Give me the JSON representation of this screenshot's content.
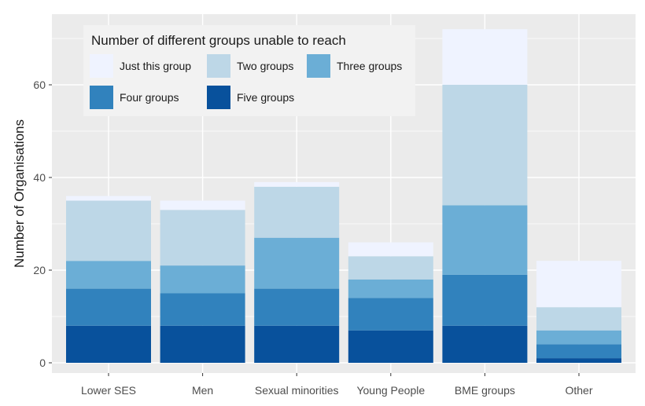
{
  "chart_data": {
    "type": "bar",
    "stacked": true,
    "categories": [
      "Lower SES",
      "Men",
      "Sexual minorities",
      "Young People",
      "BME groups",
      "Other"
    ],
    "series": [
      {
        "name": "Five groups",
        "color": "#08519c",
        "values": [
          8,
          8,
          8,
          7,
          8,
          1
        ]
      },
      {
        "name": "Four groups",
        "color": "#3182bd",
        "values": [
          8,
          7,
          8,
          7,
          11,
          3
        ]
      },
      {
        "name": "Three groups",
        "color": "#6baed6",
        "values": [
          6,
          6,
          11,
          4,
          15,
          3
        ]
      },
      {
        "name": "Two groups",
        "color": "#bdd7e7",
        "values": [
          13,
          12,
          11,
          5,
          26,
          5
        ]
      },
      {
        "name": "Just this group",
        "color": "#eff3ff",
        "values": [
          1,
          2,
          1,
          3,
          12,
          10
        ]
      }
    ],
    "ylabel": "Number of Organisations",
    "xlabel": "",
    "ylim": [
      0,
      75
    ],
    "yticks": [
      0,
      20,
      40,
      60
    ],
    "grid": true,
    "panel_background": "#ebebeb",
    "grid_color": "#ffffff",
    "legend": {
      "title": "Number of different groups unable to reach",
      "placement": "top-left-inside",
      "order": [
        "Just this group",
        "Two groups",
        "Three groups",
        "Four groups",
        "Five groups"
      ]
    }
  }
}
